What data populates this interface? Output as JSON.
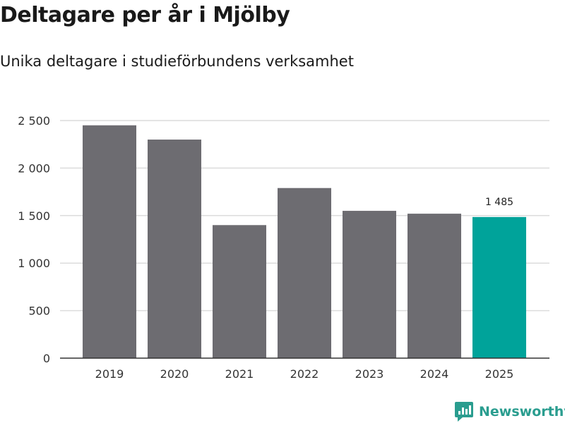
{
  "chart_data": {
    "type": "bar",
    "title": "Deltagare per år i Mjölby",
    "subtitle": "Unika deltagare i studieförbundens verksamhet",
    "categories": [
      "2019",
      "2020",
      "2021",
      "2022",
      "2023",
      "2024",
      "2025"
    ],
    "values": [
      2450,
      2300,
      1400,
      1790,
      1550,
      1520,
      1485
    ],
    "highlight_index": 6,
    "data_labels": [
      {
        "index": 6,
        "text": "1 485"
      }
    ],
    "ylim": [
      0,
      2500
    ],
    "yticks": [
      {
        "value": 0,
        "label": "0"
      },
      {
        "value": 500,
        "label": "500"
      },
      {
        "value": 1000,
        "label": "1 000"
      },
      {
        "value": 1500,
        "label": "1 500"
      },
      {
        "value": 2000,
        "label": "2 000"
      },
      {
        "value": 2500,
        "label": "2 500"
      }
    ],
    "grid": true,
    "xlabel": "",
    "ylabel": "",
    "colors": {
      "bar": "#6d6c71",
      "highlight": "#00a39a",
      "grid": "#dcdcdc",
      "axis": "#333333"
    }
  },
  "branding": {
    "logo_text": "Newsworthy",
    "logo_color": "#2a9d8f"
  }
}
